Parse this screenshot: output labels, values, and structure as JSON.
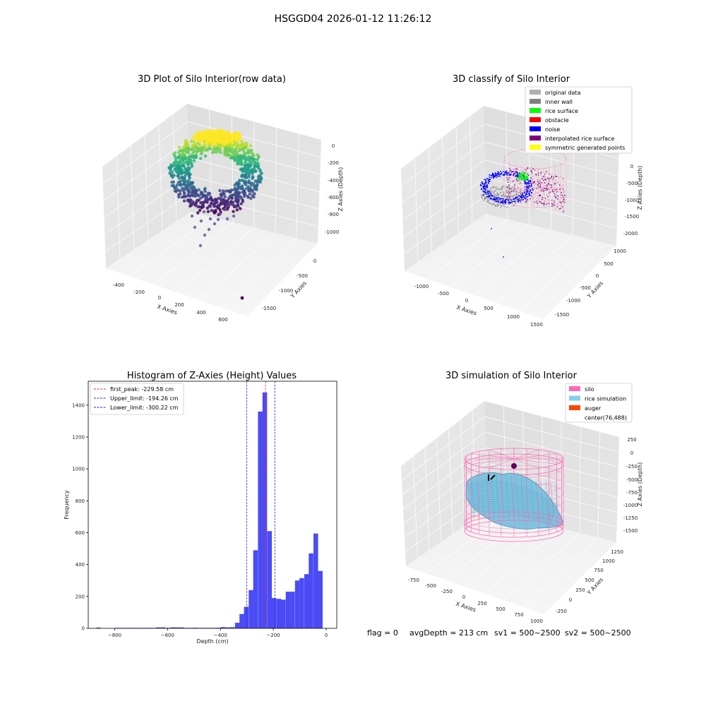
{
  "suptitle": "HSGGD04 2026-01-12 11:26:12",
  "footer": {
    "flag": "flag = 0",
    "avg_depth": "avgDepth = 213 cm",
    "sv1": "sv1 = 500~2500",
    "sv2": "sv2 = 500~2500"
  },
  "colors": {
    "hist_bar": "#4b4bf5",
    "first_peak_line": "#e03030",
    "limit_lines": "#2a2ad0",
    "silo": "#ff69b4",
    "rice_simulation": "#87ceeb",
    "auger": "#ff4500",
    "original_data": "#b0b0b0",
    "inner_wall": "#808080",
    "rice_surface": "#00ff00",
    "obstacle": "#ff0000",
    "noise": "#0000ff",
    "interpolated_rice_surface": "#800080",
    "symmetric_generated_points": "#ffff00"
  },
  "chart_data": [
    {
      "type": "scatter",
      "projection": "3d",
      "title": "3D Plot of Silo Interior(row data)",
      "xlabel": "X Axies",
      "ylabel": "Y Axies",
      "zlabel": "Z Axies (Depth)",
      "x_ticks": [
        "-400",
        "-200",
        "0",
        "200",
        "400",
        "600"
      ],
      "y_ticks": [
        "-1500",
        "-1000",
        "-500",
        "0"
      ],
      "z_ticks": [
        "0",
        "-200",
        "-400",
        "-600",
        "-800",
        "-1000"
      ],
      "grid": true,
      "colormap": "viridis"
    },
    {
      "type": "scatter",
      "projection": "3d",
      "title": "3D classify of Silo Interior",
      "xlabel": "X Axies",
      "ylabel": "Y Axies",
      "zlabel": "Z Axies (Depth)",
      "x_ticks": [
        "-1000",
        "-500",
        "0",
        "500",
        "1000",
        "1500"
      ],
      "y_ticks": [
        "-1500",
        "-1000",
        "-500",
        "0",
        "500",
        "1000"
      ],
      "z_ticks": [
        "0",
        "-500",
        "-1000",
        "-1500",
        "-2000"
      ],
      "grid": true,
      "legend_position": "top-right",
      "legend": [
        {
          "label": "original data",
          "color": "#b0b0b0"
        },
        {
          "label": "inner wall",
          "color": "#808080"
        },
        {
          "label": "rice surface",
          "color": "#00ff00"
        },
        {
          "label": "obstacle",
          "color": "#ff0000"
        },
        {
          "label": "noise",
          "color": "#0000ff"
        },
        {
          "label": "interpolated rice surface",
          "color": "#800080"
        },
        {
          "label": "symmetric generated points",
          "color": "#ffff00"
        }
      ]
    },
    {
      "type": "bar",
      "title": "Histogram of Z-Axies (Height) Values",
      "xlabel": "Depth (cm)",
      "ylabel": "Frequency",
      "xlim": [
        -900,
        40
      ],
      "ylim": [
        0,
        1550
      ],
      "x_ticks": [
        -800,
        -600,
        -400,
        -200,
        0
      ],
      "y_ticks": [
        0,
        200,
        400,
        600,
        800,
        1000,
        1200,
        1400
      ],
      "bin_width": 17.5,
      "bins": [
        {
          "x": -870,
          "count": 5
        },
        {
          "x": -800,
          "count": 3
        },
        {
          "x": -783,
          "count": 3
        },
        {
          "x": -765,
          "count": 3
        },
        {
          "x": -748,
          "count": 3
        },
        {
          "x": -730,
          "count": 3
        },
        {
          "x": -713,
          "count": 3
        },
        {
          "x": -695,
          "count": 3
        },
        {
          "x": -678,
          "count": 3
        },
        {
          "x": -660,
          "count": 3
        },
        {
          "x": -643,
          "count": 6
        },
        {
          "x": -625,
          "count": 6
        },
        {
          "x": -608,
          "count": 3
        },
        {
          "x": -590,
          "count": 6
        },
        {
          "x": -573,
          "count": 6
        },
        {
          "x": -555,
          "count": 6
        },
        {
          "x": -538,
          "count": 3
        },
        {
          "x": -520,
          "count": 3
        },
        {
          "x": -503,
          "count": 4
        },
        {
          "x": -485,
          "count": 3
        },
        {
          "x": -468,
          "count": 3
        },
        {
          "x": -450,
          "count": 3
        },
        {
          "x": -433,
          "count": 3
        },
        {
          "x": -415,
          "count": 4
        },
        {
          "x": -398,
          "count": 8
        },
        {
          "x": -380,
          "count": 6
        },
        {
          "x": -363,
          "count": 7
        },
        {
          "x": -345,
          "count": 35
        },
        {
          "x": -328,
          "count": 90
        },
        {
          "x": -311,
          "count": 135
        },
        {
          "x": -293,
          "count": 240
        },
        {
          "x": -276,
          "count": 490
        },
        {
          "x": -258,
          "count": 1360
        },
        {
          "x": -241,
          "count": 1480
        },
        {
          "x": -223,
          "count": 610
        },
        {
          "x": -206,
          "count": 190
        },
        {
          "x": -188,
          "count": 185
        },
        {
          "x": -171,
          "count": 180
        },
        {
          "x": -153,
          "count": 230
        },
        {
          "x": -136,
          "count": 230
        },
        {
          "x": -118,
          "count": 300
        },
        {
          "x": -101,
          "count": 315
        },
        {
          "x": -83,
          "count": 340
        },
        {
          "x": -66,
          "count": 470
        },
        {
          "x": -48,
          "count": 595
        },
        {
          "x": -31,
          "count": 360
        }
      ],
      "lines": [
        {
          "label": "first_peak: -229.58 cm",
          "x": -229.58,
          "color": "#e03030"
        },
        {
          "label": "Upper_limit: -194.26 cm",
          "x": -194.26,
          "color": "#2a2ad0"
        },
        {
          "label": "Lower_limit: -300.22 cm",
          "x": -300.22,
          "color": "#2a2ad0"
        }
      ],
      "legend_position": "top-left"
    },
    {
      "type": "surface",
      "projection": "3d",
      "title": "3D simulation of Silo Interior",
      "xlabel": "X Axies",
      "ylabel": "Y Axies",
      "zlabel": "Z Axies (Depth)",
      "x_ticks": [
        "-750",
        "-500",
        "-250",
        "0",
        "250",
        "500",
        "750",
        "1000"
      ],
      "y_ticks": [
        "-250",
        "0",
        "250",
        "500",
        "750",
        "1000",
        "1250"
      ],
      "z_ticks": [
        "250",
        "0",
        "-250",
        "-500",
        "-750",
        "-1000",
        "-1250",
        "-1500"
      ],
      "grid": true,
      "legend_position": "top-right",
      "legend": [
        {
          "label": "silo",
          "color": "#ff69b4"
        },
        {
          "label": "rice simulation",
          "color": "#87ceeb"
        },
        {
          "label": "auger",
          "color": "#ff4500"
        },
        {
          "label": "center(76,488)",
          "color": ""
        }
      ]
    }
  ]
}
